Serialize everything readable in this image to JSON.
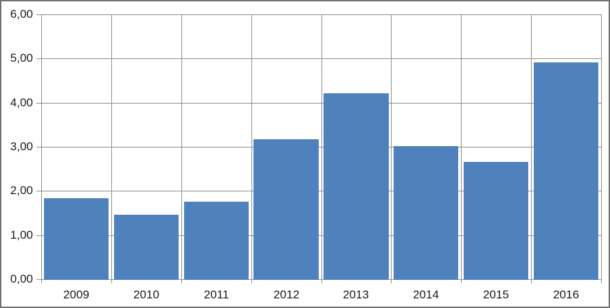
{
  "chart_data": {
    "type": "bar",
    "title": "",
    "xlabel": "",
    "ylabel": "",
    "categories": [
      "2009",
      "2010",
      "2011",
      "2012",
      "2013",
      "2014",
      "2015",
      "2016"
    ],
    "values": [
      1.84,
      1.46,
      1.76,
      3.17,
      4.21,
      3.01,
      2.66,
      4.92
    ],
    "ylim": [
      0,
      6
    ],
    "y_tick_step": 1,
    "y_tick_labels": [
      "0,00",
      "1,00",
      "2,00",
      "3,00",
      "4,00",
      "5,00",
      "6,00"
    ],
    "grid": true,
    "grid_style": "full-box-horizontal-and-vertical",
    "legend": false,
    "colors": {
      "bar": "#4F81BD",
      "gridline": "#8C8C8C",
      "axis": "#8C8C8C",
      "text": "#1a1a1a",
      "background": "#ffffff",
      "frame_border": "#6f6f6f"
    }
  }
}
